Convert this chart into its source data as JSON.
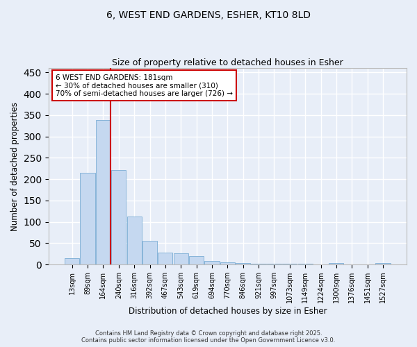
{
  "title_line1": "6, WEST END GARDENS, ESHER, KT10 8LD",
  "title_line2": "Size of property relative to detached houses in Esher",
  "xlabel": "Distribution of detached houses by size in Esher",
  "ylabel": "Number of detached properties",
  "categories": [
    "13sqm",
    "89sqm",
    "164sqm",
    "240sqm",
    "316sqm",
    "392sqm",
    "467sqm",
    "543sqm",
    "619sqm",
    "694sqm",
    "770sqm",
    "846sqm",
    "921sqm",
    "997sqm",
    "1073sqm",
    "1149sqm",
    "1224sqm",
    "1300sqm",
    "1376sqm",
    "1451sqm",
    "1527sqm"
  ],
  "values": [
    15,
    215,
    338,
    222,
    112,
    55,
    27,
    26,
    19,
    8,
    5,
    3,
    1,
    1,
    1,
    1,
    0,
    3,
    0,
    0,
    3
  ],
  "bar_color": "#c5d8f0",
  "bar_edge_color": "#7aadd4",
  "vline_x": 2.0,
  "vline_color": "#cc0000",
  "annotation_text": "6 WEST END GARDENS: 181sqm\n← 30% of detached houses are smaller (310)\n70% of semi-detached houses are larger (726) →",
  "annotation_box_color": "#ffffff",
  "annotation_box_edge": "#cc0000",
  "ylim": [
    0,
    460
  ],
  "yticks": [
    0,
    50,
    100,
    150,
    200,
    250,
    300,
    350,
    400,
    450
  ],
  "bg_color": "#e8eef8",
  "grid_color": "#ffffff",
  "footer_line1": "Contains HM Land Registry data © Crown copyright and database right 2025.",
  "footer_line2": "Contains public sector information licensed under the Open Government Licence v3.0."
}
